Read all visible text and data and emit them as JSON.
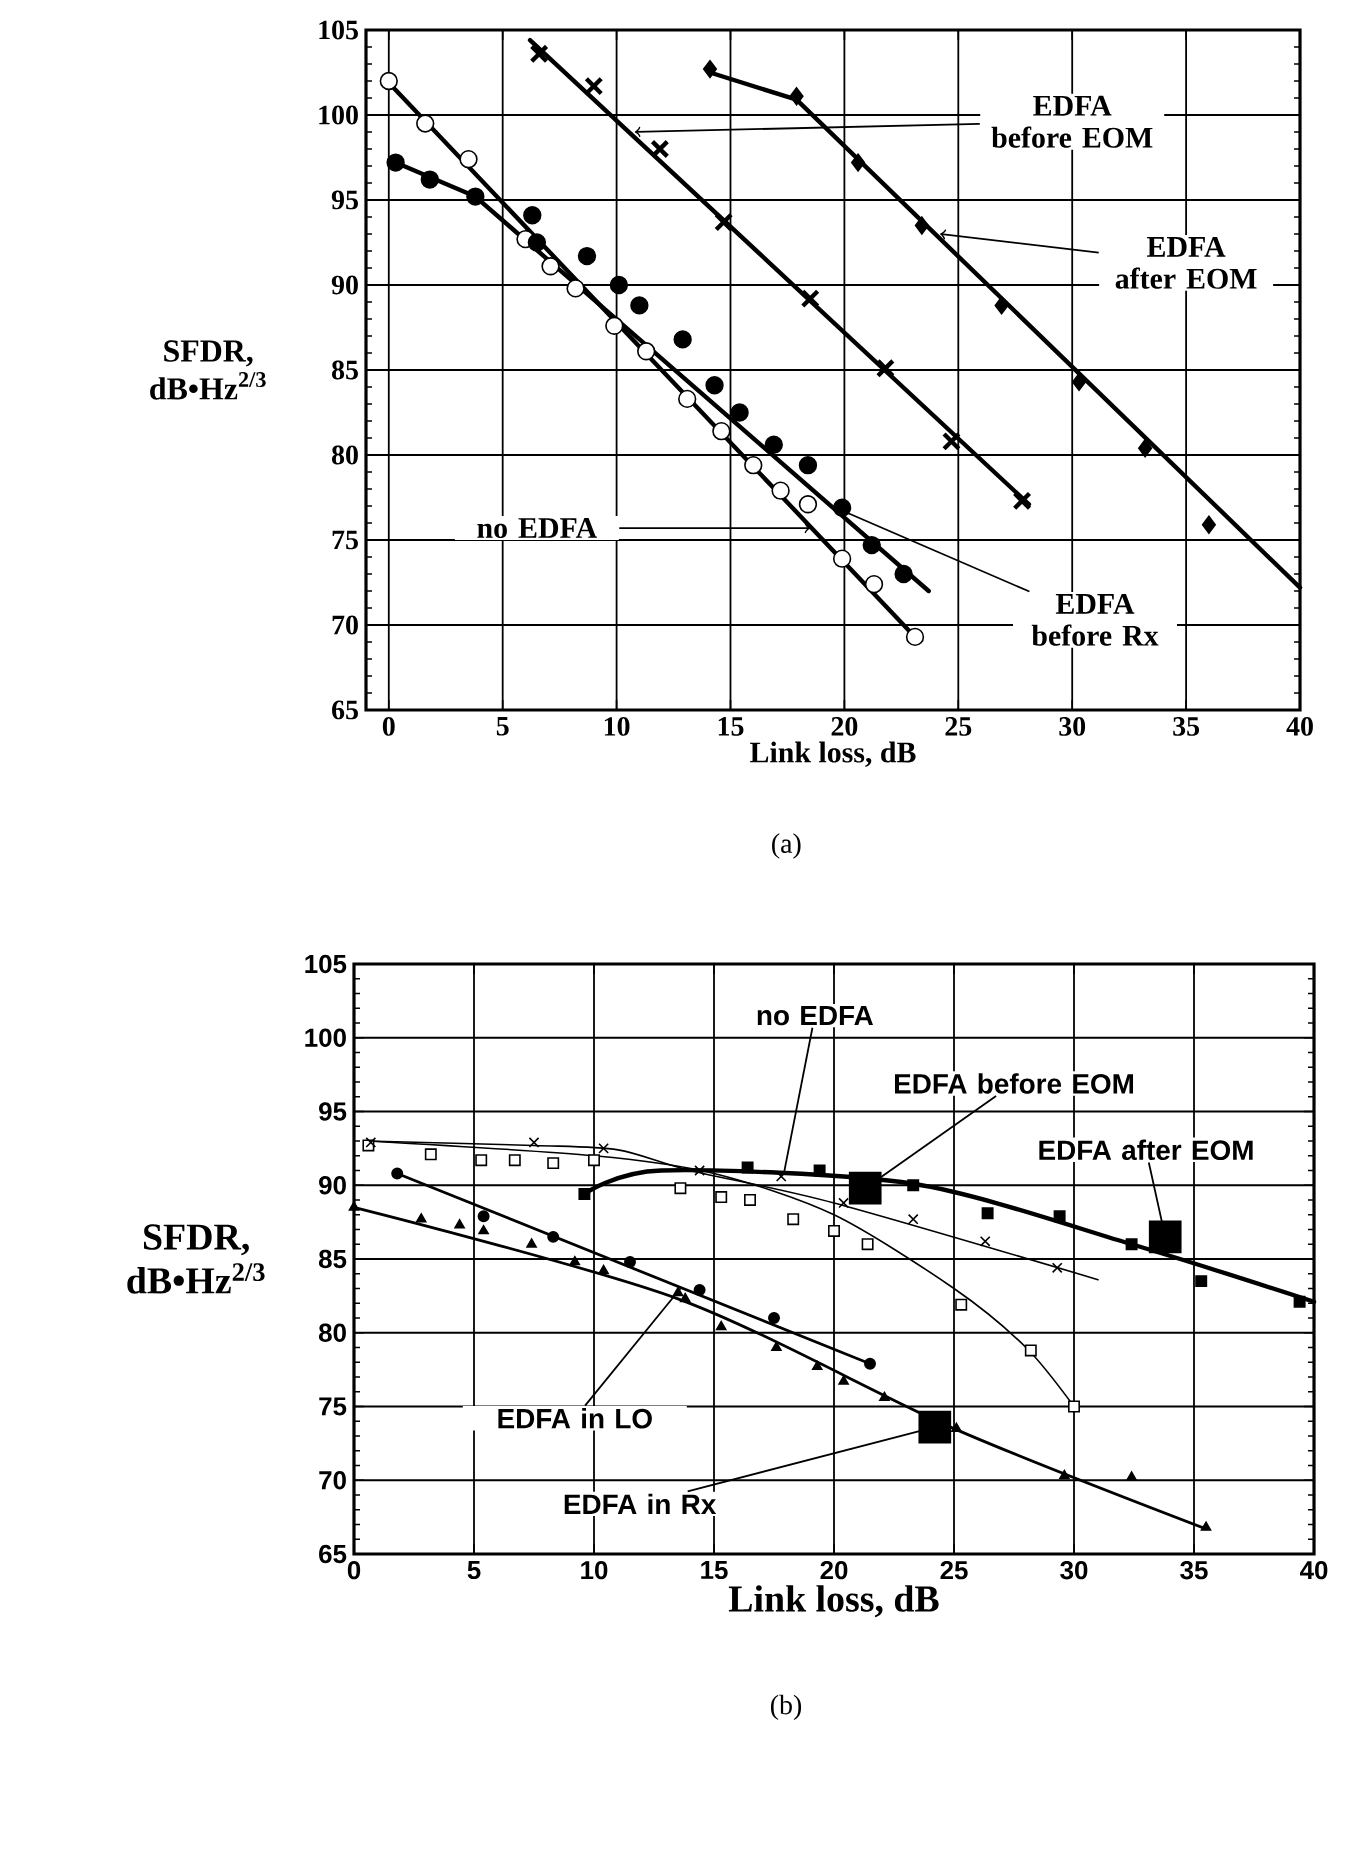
{
  "chart_data": [
    {
      "type": "scatter",
      "xlabel": "Link loss, dB",
      "ylabel": "SFDR, dB•Hz$^{2/3}$",
      "xlim": [
        -1,
        40
      ],
      "ylim": [
        65,
        105
      ],
      "xticks": [
        0,
        5,
        10,
        15,
        20,
        25,
        30,
        35,
        40
      ],
      "yticks": [
        65,
        70,
        75,
        80,
        85,
        90,
        95,
        100,
        105
      ],
      "grid": true,
      "series": [
        {
          "color": "#000000",
          "marker": "circle",
          "x": [
            0,
            1.6,
            3.5,
            6.0,
            7.1,
            8.2,
            9.9,
            11.3,
            13.1,
            14.6,
            16.0,
            17.2,
            18.4,
            19.9,
            21.3,
            23.1
          ],
          "values": [
            102.0,
            99.5,
            97.4,
            92.7,
            91.1,
            89.8,
            87.6,
            86.1,
            83.3,
            81.4,
            79.4,
            77.9,
            77.1,
            73.9,
            72.4,
            69.3
          ]
        },
        {
          "color": "#000000",
          "marker": "circle",
          "x": [
            0.3,
            1.8,
            3.8,
            6.3,
            6.5,
            8.7,
            10.1,
            11.0,
            12.9,
            14.3,
            15.4,
            16.9,
            18.4,
            19.9,
            21.2,
            22.6
          ],
          "values": [
            97.2,
            96.2,
            95.2,
            94.1,
            92.5,
            91.7,
            90.0,
            88.8,
            86.8,
            84.1,
            82.5,
            80.6,
            79.4,
            76.9,
            74.7,
            73.0
          ]
        },
        {
          "color": "#000000",
          "marker": "cross",
          "x": [
            6.6,
            9.0,
            11.9,
            14.7,
            18.5,
            21.8,
            24.7,
            27.8
          ],
          "values": [
            103.6,
            101.7,
            98.0,
            93.7,
            89.2,
            85.1,
            80.8,
            77.3
          ]
        },
        {
          "color": "#000000",
          "marker": "diamond",
          "x": [
            14.1,
            17.9,
            20.6,
            23.4,
            26.9,
            30.3,
            33.2,
            36.0
          ],
          "values": [
            102.7,
            101.1,
            97.2,
            93.5,
            88.8,
            84.3,
            80.4,
            75.9
          ]
        },
        {
          "type": "line",
          "color": "#000000",
          "x": [
            0,
            23.1
          ],
          "values": [
            101.9,
            69.3
          ]
        },
        {
          "type": "line",
          "color": "#000000",
          "x": [
            0.3,
            3.8,
            23.7
          ],
          "values": [
            97.2,
            95.2,
            72.0
          ]
        },
        {
          "type": "line",
          "color": "#000000",
          "x": [
            6.2,
            28.1
          ],
          "values": [
            104.4,
            77.1
          ]
        },
        {
          "type": "line",
          "color": "#000000",
          "x": [
            14.1,
            17.9,
            40
          ],
          "values": [
            102.5,
            100.9,
            72.2
          ]
        }
      ],
      "annotations": [
        {
          "text": "EDFA before EOM",
          "x": 10.8,
          "y": 99
        },
        {
          "text": "EDFA after EOM",
          "x": 24.2,
          "y": 93
        },
        {
          "text": "no EDFA",
          "x": 18.5,
          "y": 75.7
        },
        {
          "text": "EDFA before Rx",
          "x": 19.6,
          "y": 76.9
        },
        "(a)"
      ]
    },
    {
      "type": "scatter",
      "xlabel": "Link loss, dB",
      "ylabel": "SFDR, dB•Hz$^{2/3}$",
      "xlim": [
        0,
        40
      ],
      "ylim": [
        65,
        105
      ],
      "xticks": [
        0,
        5,
        10,
        15,
        20,
        25,
        30,
        35,
        40
      ],
      "yticks": [
        65,
        70,
        75,
        80,
        85,
        90,
        95,
        100,
        105
      ],
      "grid": true,
      "series": [
        {
          "color": "#000000",
          "marker": "square",
          "x": [
            0.6,
            3.2,
            5.3,
            6.7,
            8.3,
            10.0,
            13.6,
            15.3,
            16.5,
            18.3,
            20.0,
            21.4,
            25.3,
            28.2,
            30.0
          ],
          "values": [
            92.7,
            92.1,
            91.7,
            91.7,
            91.5,
            91.7,
            89.8,
            89.2,
            89.0,
            87.7,
            86.9,
            86.0,
            81.9,
            78.8,
            75.0
          ]
        },
        {
          "color": "#000000",
          "marker": "cross",
          "x": [
            0.7,
            7.5,
            10.4,
            14.4,
            17.8,
            20.4,
            23.3,
            26.3,
            29.3
          ],
          "values": [
            92.9,
            92.9,
            92.5,
            91.0,
            90.6,
            88.8,
            87.7,
            86.2,
            84.4
          ]
        },
        {
          "color": "#000000",
          "marker": "square",
          "x": [
            9.6,
            16.4,
            19.4,
            23.3,
            26.4,
            29.4,
            32.4,
            35.3,
            39.4
          ],
          "values": [
            89.4,
            91.2,
            91.0,
            90.0,
            88.1,
            87.9,
            86.0,
            83.5,
            82.1
          ]
        },
        {
          "color": "#000000",
          "marker": "circle",
          "x": [
            1.8,
            5.4,
            8.3,
            11.5,
            14.4,
            17.5,
            21.5
          ],
          "values": [
            90.8,
            87.9,
            86.5,
            84.8,
            82.9,
            81.0,
            77.9
          ]
        },
        {
          "color": "#000000",
          "marker": "triangle",
          "x": [
            0,
            2.8,
            4.4,
            5.4,
            7.4,
            9.2,
            10.4,
            13.5,
            13.8,
            15.3,
            17.6,
            19.3,
            20.4,
            22.1,
            25.1,
            29.6,
            32.4,
            35.5
          ],
          "values": [
            88.5,
            87.7,
            87.3,
            86.9,
            86.0,
            84.8,
            84.2,
            82.7,
            82.3,
            80.4,
            79.0,
            77.7,
            76.7,
            75.6,
            73.5,
            70.3,
            70.2,
            66.8
          ]
        },
        {
          "type": "line",
          "color": "#000000",
          "x": [
            0.6,
            10,
            15,
            20,
            25,
            28,
            30
          ],
          "values": [
            93.0,
            92.0,
            90.8,
            88.0,
            83.0,
            79.0,
            75.0
          ]
        },
        {
          "type": "line",
          "color": "#000000",
          "x": [
            0.5,
            7.5,
            11,
            14,
            20,
            31
          ],
          "values": [
            93.0,
            92.7,
            92.4,
            91.0,
            88.8,
            83.6
          ]
        },
        {
          "type": "line",
          "color": "#000000",
          "x": [
            9.6,
            12.8,
            23.3,
            32.4,
            40
          ],
          "values": [
            89.4,
            91.0,
            90.1,
            86.0,
            82.1
          ]
        },
        {
          "type": "line",
          "color": "#000000",
          "x": [
            1.8,
            21.5
          ],
          "values": [
            90.8,
            77.9
          ]
        },
        {
          "type": "line",
          "color": "#000000",
          "x": [
            0,
            13.5,
            25,
            35.5
          ],
          "values": [
            88.5,
            82.3,
            73.5,
            66.7
          ]
        },
        {
          "color": "#000000",
          "marker": "square",
          "x": [
            21.3,
            24.2,
            33.8
          ],
          "values": [
            89.8,
            73.6,
            86.5
          ]
        }
      ],
      "annotations": [
        {
          "text": "no EDFA",
          "x": 17.9,
          "y": 90.7
        },
        {
          "text": "EDFA before EOM",
          "x": 21.3,
          "y": 89.8
        },
        {
          "text": "EDFA after EOM",
          "x": 33.8,
          "y": 86.5
        },
        {
          "text": "EDFA in LO",
          "x": 13.6,
          "y": 83.0
        },
        {
          "text": "EDFA in Rx",
          "x": 24.2,
          "y": 73.6
        },
        "(b)"
      ]
    }
  ]
}
